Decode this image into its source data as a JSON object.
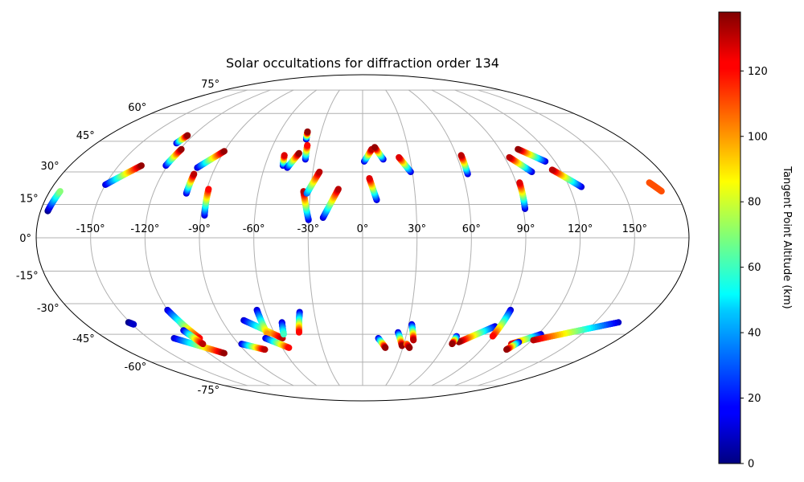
{
  "chart_data": {
    "type": "scatter",
    "projection": "mollweide",
    "title": "Solar occultations for diffraction order 134",
    "grid": true,
    "lon_ticks": [
      "-150°",
      "-120°",
      "-90°",
      "-60°",
      "-30°",
      "0°",
      "30°",
      "60°",
      "90°",
      "120°",
      "150°"
    ],
    "lat_ticks": [
      "75°",
      "60°",
      "45°",
      "30°",
      "15°",
      "0°",
      "-15°",
      "-30°",
      "-45°",
      "-60°",
      "-75°"
    ],
    "colorbar": {
      "label": "Tangent Point Altitude (km)",
      "colormap": "jet",
      "range": [
        0,
        138
      ],
      "ticks": [
        "0",
        "20",
        "40",
        "60",
        "80",
        "100",
        "120"
      ]
    },
    "series": [
      {
        "lon_start": -176,
        "lat_start": 12,
        "lon_end": -174,
        "lat_end": 21,
        "alt_start": 0,
        "alt_end": 70
      },
      {
        "lon_start": -150,
        "lat_start": 24,
        "lon_end": -136,
        "lat_end": 33,
        "alt_start": 10,
        "alt_end": 135
      },
      {
        "lon_start": -126,
        "lat_start": 44,
        "lon_end": -124,
        "lat_end": 48,
        "alt_start": 10,
        "alt_end": 135
      },
      {
        "lon_start": -121,
        "lat_start": 33,
        "lon_end": -119,
        "lat_end": 41,
        "alt_start": 10,
        "alt_end": 135
      },
      {
        "lon_start": -101,
        "lat_start": 32,
        "lon_end": -90,
        "lat_end": 40,
        "alt_start": 10,
        "alt_end": 135
      },
      {
        "lon_start": -101,
        "lat_start": 20,
        "lon_end": -101,
        "lat_end": 29,
        "alt_start": 10,
        "alt_end": 130
      },
      {
        "lon_start": -88,
        "lat_start": 10,
        "lon_end": -89,
        "lat_end": 22,
        "alt_start": 10,
        "alt_end": 120
      },
      {
        "lon_start": -49,
        "lat_start": 33,
        "lon_end": -50,
        "lat_end": 38,
        "alt_start": 10,
        "alt_end": 125
      },
      {
        "lon_start": -46,
        "lat_start": 32,
        "lon_end": -41,
        "lat_end": 39,
        "alt_start": 10,
        "alt_end": 135
      },
      {
        "lon_start": -39,
        "lat_start": 46,
        "lon_end": -40,
        "lat_end": 50,
        "alt_start": 0,
        "alt_end": 135
      },
      {
        "lon_start": -36,
        "lat_start": 36,
        "lon_end": -37,
        "lat_end": 43,
        "alt_start": 10,
        "alt_end": 120
      },
      {
        "lon_start": -30,
        "lat_start": 8,
        "lon_end": -34,
        "lat_end": 21,
        "alt_start": 10,
        "alt_end": 130
      },
      {
        "lon_start": -32,
        "lat_start": 20,
        "lon_end": -26,
        "lat_end": 30,
        "alt_start": 30,
        "alt_end": 130
      },
      {
        "lon_start": -22,
        "lat_start": 9,
        "lon_end": -14,
        "lat_end": 22,
        "alt_start": 10,
        "alt_end": 130
      },
      {
        "lon_start": 1,
        "lat_start": 35,
        "lon_end": 6,
        "lat_end": 41,
        "alt_start": 10,
        "alt_end": 130
      },
      {
        "lon_start": 13,
        "lat_start": 36,
        "lon_end": 8,
        "lat_end": 42,
        "alt_start": 10,
        "alt_end": 135
      },
      {
        "lon_start": 8,
        "lat_start": 17,
        "lon_end": 4,
        "lat_end": 27,
        "alt_start": 10,
        "alt_end": 125
      },
      {
        "lon_start": 29,
        "lat_start": 30,
        "lon_end": 23,
        "lat_end": 37,
        "alt_start": 10,
        "alt_end": 125
      },
      {
        "lon_start": 63,
        "lat_start": 29,
        "lon_end": 63,
        "lat_end": 38,
        "alt_start": 10,
        "alt_end": 130
      },
      {
        "lon_start": 102,
        "lat_start": 30,
        "lon_end": 93,
        "lat_end": 37,
        "alt_start": 10,
        "alt_end": 130
      },
      {
        "lon_start": 114,
        "lat_start": 35,
        "lon_end": 102,
        "lat_end": 41,
        "alt_start": 10,
        "alt_end": 135
      },
      {
        "lon_start": 91,
        "lat_start": 13,
        "lon_end": 92,
        "lat_end": 25,
        "alt_start": 10,
        "alt_end": 125
      },
      {
        "lon_start": 127,
        "lat_start": 23,
        "lon_end": 115,
        "lat_end": 31,
        "alt_start": 10,
        "alt_end": 130
      },
      {
        "lon_start": 172,
        "lat_start": 21,
        "lon_end": 168,
        "lat_end": 25,
        "alt_start": 110,
        "alt_end": 110
      },
      {
        "lon_start": -151,
        "lat_start": -39,
        "lon_end": -149,
        "lat_end": -40,
        "alt_start": 0,
        "alt_end": 10
      },
      {
        "lon_start": -132,
        "lat_start": -47,
        "lon_end": -108,
        "lat_end": -55,
        "alt_start": 10,
        "alt_end": 135
      },
      {
        "lon_start": -120,
        "lat_start": -33,
        "lon_end": -114,
        "lat_end": -47,
        "alt_start": 10,
        "alt_end": 120
      },
      {
        "lon_start": -120,
        "lat_start": -43,
        "lon_end": -116,
        "lat_end": -50,
        "alt_start": 10,
        "alt_end": 130
      },
      {
        "lon_start": -88,
        "lat_start": -50,
        "lon_end": -74,
        "lat_end": -53,
        "alt_start": 10,
        "alt_end": 130
      },
      {
        "lon_start": -76,
        "lat_start": -38,
        "lon_end": -56,
        "lat_end": -47,
        "alt_start": 10,
        "alt_end": 130
      },
      {
        "lon_start": -65,
        "lat_start": -33,
        "lon_end": -65,
        "lat_end": -45,
        "alt_start": 10,
        "alt_end": 100
      },
      {
        "lon_start": -68,
        "lat_start": -47,
        "lon_end": -55,
        "lat_end": -52,
        "alt_start": 10,
        "alt_end": 120
      },
      {
        "lon_start": -52,
        "lat_start": -39,
        "lon_end": -54,
        "lat_end": -45,
        "alt_start": 10,
        "alt_end": 60
      },
      {
        "lon_start": -39,
        "lat_start": -34,
        "lon_end": -43,
        "lat_end": -44,
        "alt_start": 10,
        "alt_end": 120
      },
      {
        "lon_start": 11,
        "lat_start": -47,
        "lon_end": 17,
        "lat_end": -52,
        "alt_start": 10,
        "alt_end": 135
      },
      {
        "lon_start": 24,
        "lat_start": -44,
        "lon_end": 29,
        "lat_end": -51,
        "alt_start": 10,
        "alt_end": 135
      },
      {
        "lon_start": 32,
        "lat_start": -40,
        "lon_end": 36,
        "lat_end": -48,
        "alt_start": 10,
        "alt_end": 130
      },
      {
        "lon_start": 32,
        "lat_start": -50,
        "lon_end": 35,
        "lat_end": -52,
        "alt_start": 100,
        "alt_end": 135
      },
      {
        "lon_start": 87,
        "lat_start": -41,
        "lon_end": 69,
        "lat_end": -49,
        "alt_start": 10,
        "alt_end": 135
      },
      {
        "lon_start": 65,
        "lat_start": -46,
        "lon_end": 65,
        "lat_end": -50,
        "alt_start": 10,
        "alt_end": 135
      },
      {
        "lon_start": 91,
        "lat_start": -33,
        "lon_end": 90,
        "lat_end": -46,
        "alt_start": 10,
        "alt_end": 120
      },
      {
        "lon_start": 122,
        "lat_start": -45,
        "lon_end": 108,
        "lat_end": -50,
        "alt_start": 10,
        "alt_end": 125
      },
      {
        "lon_start": 112,
        "lat_start": -49,
        "lon_end": 109,
        "lat_end": -53,
        "alt_start": 10,
        "alt_end": 135
      },
      {
        "lon_start": 165,
        "lat_start": -39,
        "lon_end": 121,
        "lat_end": -48,
        "alt_start": 10,
        "alt_end": 130
      }
    ]
  }
}
